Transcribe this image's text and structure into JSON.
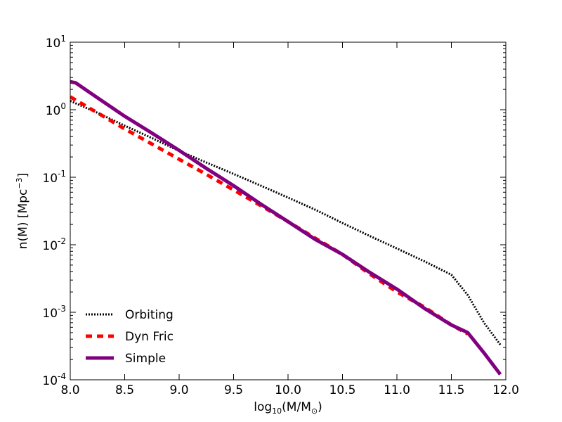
{
  "chart_data": {
    "type": "line",
    "title": "",
    "xlabel": {
      "prefix": "log",
      "sub": "10",
      "mid": "(M/M",
      "sym": "⊙",
      "suffix": ")"
    },
    "ylabel": {
      "main": "n(M) [Mpc",
      "sup": "−3",
      "close": "]"
    },
    "xlim": [
      8.0,
      12.0
    ],
    "ylim_log10": [
      -4,
      1
    ],
    "y_scale": "log",
    "x_tick_labels": [
      "8.0",
      "8.5",
      "9.0",
      "9.5",
      "10.0",
      "10.5",
      "11.0",
      "11.5",
      "12.0"
    ],
    "y_tick_labels": [
      {
        "base": "10",
        "exp": "-4"
      },
      {
        "base": "10",
        "exp": "-3"
      },
      {
        "base": "10",
        "exp": "-2"
      },
      {
        "base": "10",
        "exp": "-1"
      },
      {
        "base": "10",
        "exp": "0"
      },
      {
        "base": "10",
        "exp": "1"
      }
    ],
    "legend_position": "lower-left",
    "series": [
      {
        "name": "Orbiting",
        "style": "dotted",
        "color": "#000000",
        "x": [
          8.0,
          8.25,
          8.5,
          8.75,
          9.0,
          9.25,
          9.5,
          9.75,
          10.0,
          10.25,
          10.5,
          10.75,
          11.0,
          11.25,
          11.5,
          11.65,
          11.8,
          11.95
        ],
        "y": [
          1.35,
          0.9,
          0.58,
          0.38,
          0.245,
          0.165,
          0.112,
          0.075,
          0.05,
          0.033,
          0.021,
          0.0135,
          0.0088,
          0.0057,
          0.0036,
          0.0018,
          0.0007,
          0.00033
        ]
      },
      {
        "name": "Dyn Fric",
        "style": "dashed",
        "color": "#ff0000",
        "x": [
          8.0,
          8.25,
          8.5,
          8.75,
          9.0,
          9.25,
          9.5,
          9.75,
          10.0,
          10.25,
          10.5,
          10.75,
          11.0,
          11.25,
          11.5,
          11.65
        ],
        "y": [
          1.55,
          0.9,
          0.52,
          0.31,
          0.185,
          0.11,
          0.065,
          0.038,
          0.022,
          0.0125,
          0.0072,
          0.0037,
          0.002,
          0.0012,
          0.00065,
          0.00048
        ]
      },
      {
        "name": "Simple",
        "style": "solid",
        "color": "#800080",
        "x": [
          8.0,
          8.05,
          8.25,
          8.5,
          8.75,
          9.0,
          9.25,
          9.5,
          9.75,
          10.0,
          10.25,
          10.5,
          10.75,
          11.0,
          11.25,
          11.5,
          11.65,
          11.8,
          11.95
        ],
        "y": [
          2.6,
          2.5,
          1.5,
          0.8,
          0.45,
          0.25,
          0.135,
          0.075,
          0.04,
          0.022,
          0.012,
          0.0072,
          0.0039,
          0.0022,
          0.00115,
          0.00065,
          0.0005,
          0.00025,
          0.00012
        ]
      }
    ]
  }
}
